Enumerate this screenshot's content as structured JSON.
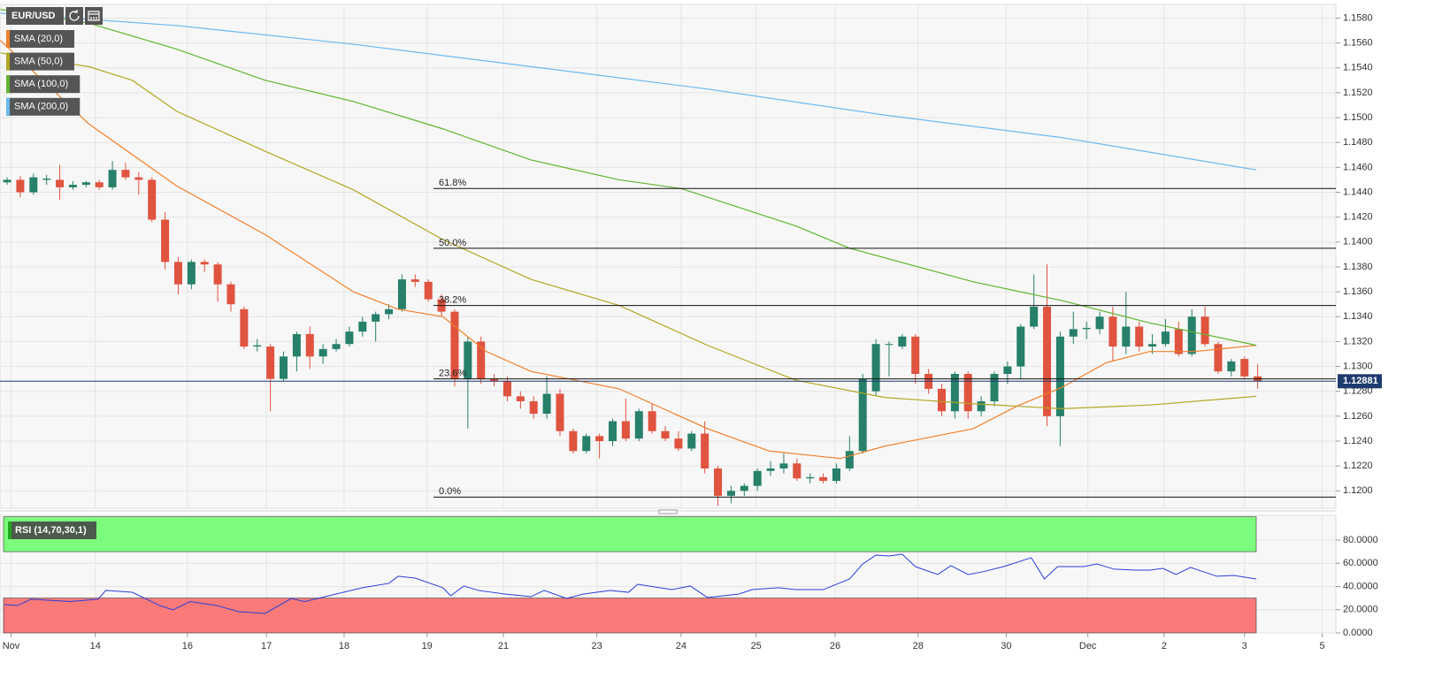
{
  "chart_data": {
    "type": "candlestick",
    "symbol": "EUR/USD",
    "up_color": "#26806a",
    "down_color": "#e0533f",
    "xlim": [
      -0.54,
      100.94
    ],
    "xticks": [
      {
        "value": 0.3,
        "label": "Nov"
      },
      {
        "value": 6.7,
        "label": "14"
      },
      {
        "value": 13.7,
        "label": "16"
      },
      {
        "value": 19.7,
        "label": "17"
      },
      {
        "value": 25.6,
        "label": "18"
      },
      {
        "value": 31.9,
        "label": "19"
      },
      {
        "value": 37.7,
        "label": "21"
      },
      {
        "value": 44.8,
        "label": "23"
      },
      {
        "value": 51.2,
        "label": "24"
      },
      {
        "value": 56.9,
        "label": "25"
      },
      {
        "value": 62.9,
        "label": "26"
      },
      {
        "value": 69.2,
        "label": "28"
      },
      {
        "value": 75.9,
        "label": "30"
      },
      {
        "value": 82.1,
        "label": "Dec"
      },
      {
        "value": 87.9,
        "label": "2"
      },
      {
        "value": 94,
        "label": "3"
      },
      {
        "value": 99.9,
        "label": "5"
      }
    ],
    "ylim": [
      1.1186,
      1.1591
    ],
    "yticks": [
      {
        "value": 1.12,
        "label": "1.1200"
      },
      {
        "value": 1.122,
        "label": "1.1220"
      },
      {
        "value": 1.124,
        "label": "1.1240"
      },
      {
        "value": 1.126,
        "label": "1.1260"
      },
      {
        "value": 1.128,
        "label": "1.1280"
      },
      {
        "value": 1.13,
        "label": "1.1300"
      },
      {
        "value": 1.132,
        "label": "1.1320"
      },
      {
        "value": 1.134,
        "label": "1.1340"
      },
      {
        "value": 1.136,
        "label": "1.1360"
      },
      {
        "value": 1.138,
        "label": "1.1380"
      },
      {
        "value": 1.14,
        "label": "1.1400"
      },
      {
        "value": 1.142,
        "label": "1.1420"
      },
      {
        "value": 1.144,
        "label": "1.1440"
      },
      {
        "value": 1.146,
        "label": "1.1460"
      },
      {
        "value": 1.148,
        "label": "1.1480"
      },
      {
        "value": 1.15,
        "label": "1.1500"
      },
      {
        "value": 1.152,
        "label": "1.1520"
      },
      {
        "value": 1.154,
        "label": "1.1540"
      },
      {
        "value": 1.156,
        "label": "1.1560"
      },
      {
        "value": 1.158,
        "label": "1.1580"
      }
    ],
    "grid": true,
    "last_price": 1.12881,
    "ohlc": [
      [
        1.1448,
        1.1452,
        1.1446,
        1.145
      ],
      [
        1.145,
        1.1453,
        1.1436,
        1.144
      ],
      [
        1.144,
        1.1455,
        1.1438,
        1.1452
      ],
      [
        1.145,
        1.1454,
        1.1446,
        1.1451
      ],
      [
        1.145,
        1.1462,
        1.1434,
        1.1444
      ],
      [
        1.1444,
        1.1449,
        1.1442,
        1.1446
      ],
      [
        1.1446,
        1.1449,
        1.1444,
        1.1448
      ],
      [
        1.1448,
        1.145,
        1.1442,
        1.1444
      ],
      [
        1.1444,
        1.1465,
        1.1442,
        1.1458
      ],
      [
        1.1458,
        1.1464,
        1.145,
        1.1452
      ],
      [
        1.1452,
        1.1456,
        1.1438,
        1.145
      ],
      [
        1.145,
        1.1452,
        1.1416,
        1.1418
      ],
      [
        1.1418,
        1.1424,
        1.1378,
        1.1384
      ],
      [
        1.1384,
        1.1388,
        1.1358,
        1.1366
      ],
      [
        1.1366,
        1.1386,
        1.1362,
        1.1384
      ],
      [
        1.1384,
        1.1386,
        1.1376,
        1.1382
      ],
      [
        1.1382,
        1.1384,
        1.1352,
        1.1366
      ],
      [
        1.1366,
        1.1368,
        1.1344,
        1.135
      ],
      [
        1.1346,
        1.1348,
        1.1314,
        1.1316
      ],
      [
        1.1316,
        1.1322,
        1.1312,
        1.1317
      ],
      [
        1.1316,
        1.1318,
        1.1264,
        1.129
      ],
      [
        1.129,
        1.1312,
        1.1288,
        1.1308
      ],
      [
        1.1308,
        1.1328,
        1.1296,
        1.1326
      ],
      [
        1.1326,
        1.1332,
        1.1298,
        1.1308
      ],
      [
        1.1308,
        1.1318,
        1.1302,
        1.1314
      ],
      [
        1.1314,
        1.1322,
        1.1312,
        1.1318
      ],
      [
        1.1318,
        1.1332,
        1.1316,
        1.1328
      ],
      [
        1.1328,
        1.134,
        1.1324,
        1.1336
      ],
      [
        1.1336,
        1.1344,
        1.132,
        1.1342
      ],
      [
        1.1342,
        1.135,
        1.1338,
        1.1346
      ],
      [
        1.1346,
        1.1374,
        1.1344,
        1.137
      ],
      [
        1.137,
        1.1374,
        1.1364,
        1.1368
      ],
      [
        1.1368,
        1.137,
        1.1352,
        1.1354
      ],
      [
        1.1354,
        1.1358,
        1.134,
        1.1344
      ],
      [
        1.1344,
        1.1346,
        1.1284,
        1.129
      ],
      [
        1.129,
        1.1324,
        1.125,
        1.132
      ],
      [
        1.132,
        1.1324,
        1.1286,
        1.129
      ],
      [
        1.129,
        1.1294,
        1.1284,
        1.1288
      ],
      [
        1.1288,
        1.1292,
        1.1272,
        1.1276
      ],
      [
        1.1276,
        1.128,
        1.1266,
        1.1272
      ],
      [
        1.1272,
        1.1276,
        1.1258,
        1.1262
      ],
      [
        1.1262,
        1.1292,
        1.1258,
        1.1278
      ],
      [
        1.1278,
        1.1282,
        1.1244,
        1.1248
      ],
      [
        1.1248,
        1.125,
        1.123,
        1.1232
      ],
      [
        1.1232,
        1.1246,
        1.123,
        1.1244
      ],
      [
        1.1244,
        1.1246,
        1.1226,
        1.124
      ],
      [
        1.124,
        1.1258,
        1.1236,
        1.1256
      ],
      [
        1.1256,
        1.1274,
        1.124,
        1.1242
      ],
      [
        1.1242,
        1.1266,
        1.124,
        1.1264
      ],
      [
        1.1264,
        1.127,
        1.1246,
        1.1248
      ],
      [
        1.1248,
        1.1252,
        1.124,
        1.1242
      ],
      [
        1.1242,
        1.1248,
        1.1232,
        1.1234
      ],
      [
        1.1234,
        1.1248,
        1.1232,
        1.1246
      ],
      [
        1.1246,
        1.1256,
        1.1214,
        1.1218
      ],
      [
        1.1218,
        1.122,
        1.1188,
        1.1196
      ],
      [
        1.1196,
        1.1204,
        1.119,
        1.12
      ],
      [
        1.12,
        1.1206,
        1.1196,
        1.1204
      ],
      [
        1.1204,
        1.1218,
        1.12,
        1.1216
      ],
      [
        1.1216,
        1.1224,
        1.1212,
        1.1218
      ],
      [
        1.1218,
        1.123,
        1.1214,
        1.1222
      ],
      [
        1.1222,
        1.1226,
        1.1208,
        1.121
      ],
      [
        1.121,
        1.1214,
        1.1206,
        1.1211
      ],
      [
        1.1211,
        1.1214,
        1.1206,
        1.1208
      ],
      [
        1.1208,
        1.1222,
        1.1206,
        1.1218
      ],
      [
        1.1218,
        1.1244,
        1.1216,
        1.1232
      ],
      [
        1.1232,
        1.1294,
        1.123,
        1.129
      ],
      [
        1.128,
        1.1322,
        1.1276,
        1.1318
      ],
      [
        1.1318,
        1.132,
        1.1292,
        1.1318
      ],
      [
        1.1316,
        1.1326,
        1.1314,
        1.1324
      ],
      [
        1.1324,
        1.1326,
        1.1286,
        1.1294
      ],
      [
        1.1294,
        1.1298,
        1.1278,
        1.1282
      ],
      [
        1.1282,
        1.1286,
        1.126,
        1.1264
      ],
      [
        1.1264,
        1.1296,
        1.1258,
        1.1294
      ],
      [
        1.1294,
        1.1296,
        1.1258,
        1.1264
      ],
      [
        1.1264,
        1.1276,
        1.126,
        1.1272
      ],
      [
        1.1272,
        1.1296,
        1.1268,
        1.1294
      ],
      [
        1.1294,
        1.1304,
        1.1286,
        1.13
      ],
      [
        1.13,
        1.1334,
        1.129,
        1.1332
      ],
      [
        1.1332,
        1.1374,
        1.133,
        1.1348
      ],
      [
        1.1348,
        1.1382,
        1.1252,
        1.126
      ],
      [
        1.126,
        1.1328,
        1.1236,
        1.1324
      ],
      [
        1.1324,
        1.1344,
        1.1318,
        1.133
      ],
      [
        1.133,
        1.1336,
        1.1322,
        1.1331
      ],
      [
        1.133,
        1.1344,
        1.1326,
        1.134
      ],
      [
        1.134,
        1.1348,
        1.1304,
        1.1316
      ],
      [
        1.1316,
        1.136,
        1.131,
        1.1332
      ],
      [
        1.1332,
        1.1336,
        1.1312,
        1.1316
      ],
      [
        1.1316,
        1.1326,
        1.131,
        1.1318
      ],
      [
        1.1318,
        1.1338,
        1.1316,
        1.1328
      ],
      [
        1.133,
        1.1336,
        1.1308,
        1.131
      ],
      [
        1.131,
        1.1346,
        1.1308,
        1.134
      ],
      [
        1.134,
        1.1348,
        1.1316,
        1.1318
      ],
      [
        1.1318,
        1.132,
        1.1294,
        1.1296
      ],
      [
        1.1296,
        1.1306,
        1.1292,
        1.1304
      ],
      [
        1.1306,
        1.1308,
        1.129,
        1.1292
      ],
      [
        1.1292,
        1.1302,
        1.1282,
        1.1288
      ]
    ],
    "series": [
      {
        "name": "SMA (20,0)",
        "color": "#f07f2a",
        "x": [
          -0.5,
          6.2,
          12.9,
          19.6,
          26.3,
          29.7,
          33.1,
          36.4,
          39.8,
          46.5,
          53.2,
          57.9,
          63.3,
          66.7,
          73.4,
          76.7,
          80.1,
          83.5,
          86.8,
          90.2,
          94.9
        ],
        "values": [
          1.1562,
          1.1495,
          1.1445,
          1.1406,
          1.136,
          1.1346,
          1.134,
          1.1312,
          1.1296,
          1.1282,
          1.125,
          1.1232,
          1.1226,
          1.1236,
          1.125,
          1.1268,
          1.1283,
          1.1303,
          1.1312,
          1.1312,
          1.1317
        ]
      },
      {
        "name": "SMA (50,0)",
        "color": "#b3a623",
        "x": [
          -0.5,
          6.2,
          9.5,
          12.9,
          19.6,
          26.3,
          33.1,
          39.8,
          46.5,
          53.2,
          59.9,
          66.7,
          73.4,
          80.1,
          86.8,
          94.9
        ],
        "values": [
          1.1552,
          1.1541,
          1.153,
          1.1505,
          1.1473,
          1.1442,
          1.1402,
          1.137,
          1.1349,
          1.1317,
          1.1289,
          1.1275,
          1.127,
          1.1266,
          1.1269,
          1.1276
        ]
      },
      {
        "name": "SMA (100,0)",
        "color": "#5fb52f",
        "x": [
          -0.5,
          6.2,
          12.9,
          19.6,
          26.3,
          33.1,
          39.8,
          46.5,
          51.2,
          59.9,
          64,
          73.4,
          80.1,
          86.8,
          94.9
        ],
        "values": [
          1.1587,
          1.1576,
          1.1555,
          1.153,
          1.1513,
          1.1491,
          1.1466,
          1.145,
          1.1443,
          1.1413,
          1.1395,
          1.1368,
          1.1353,
          1.1335,
          1.1317
        ]
      },
      {
        "name": "SMA (200,0)",
        "color": "#6ab9ef",
        "x": [
          -0.5,
          12.9,
          26.3,
          39.8,
          53.2,
          66.7,
          80.1,
          94.9
        ],
        "values": [
          1.1584,
          1.1574,
          1.1559,
          1.1541,
          1.1523,
          1.1502,
          1.1484,
          1.1458
        ]
      }
    ],
    "fib_levels": [
      {
        "label": "61.8%",
        "price": 1.1443
      },
      {
        "label": "50.0%",
        "price": 1.1395
      },
      {
        "label": "38.2%",
        "price": 1.1349
      },
      {
        "label": "23.6%",
        "price": 1.129
      },
      {
        "label": "0.0%",
        "price": 1.1195
      }
    ],
    "rsi": {
      "type": "line",
      "name": "RSI (14,70,30,1)",
      "color": "#2a3fd8",
      "ylim": [
        0,
        101.3
      ],
      "yticks": [
        {
          "value": 0,
          "label": "0.0000"
        },
        {
          "value": 20,
          "label": "20.0000"
        },
        {
          "value": 40,
          "label": "40.0000"
        },
        {
          "value": 60,
          "label": "60.0000"
        },
        {
          "value": 80,
          "label": "80.0000"
        }
      ],
      "bands": [
        {
          "range": [
            70,
            100
          ],
          "color": "#7cfc7c"
        },
        {
          "range": [
            0,
            30
          ],
          "color": "#fa7a7a"
        }
      ],
      "x": [
        -0.2,
        0.8,
        1.8,
        4.8,
        6.9,
        7.5,
        9.5,
        11.6,
        12.6,
        13.9,
        15.9,
        17.6,
        19.6,
        21.6,
        22.6,
        25,
        27,
        29,
        29.7,
        31,
        33.1,
        33.7,
        34.7,
        35.8,
        37.8,
        39.8,
        40.8,
        42.5,
        43.8,
        45.8,
        47.2,
        47.9,
        50.5,
        51.9,
        53.2,
        55.6,
        56.6,
        58.6,
        59.9,
        62,
        64,
        65,
        66,
        67,
        68,
        69,
        70.7,
        71.7,
        73,
        74.1,
        75.7,
        77.8,
        78.8,
        79.8,
        81.8,
        82.8,
        84.1,
        85.8,
        86.8,
        87.8,
        88.8,
        89.9,
        91.9,
        93.2,
        94.9
      ],
      "values": [
        24.4,
        23.6,
        29,
        27,
        29,
        36.6,
        35,
        23.6,
        19.8,
        27,
        23.6,
        18.3,
        16.8,
        29.7,
        27,
        33.5,
        38.9,
        42.7,
        48.8,
        47.2,
        38.9,
        32,
        40.4,
        36.6,
        33.5,
        31.2,
        36.6,
        29.7,
        33.5,
        36.6,
        35,
        41.9,
        37.3,
        40.4,
        30.5,
        33.5,
        37.3,
        38.9,
        37.3,
        37.3,
        46.5,
        59.4,
        67,
        66.3,
        67.8,
        57.1,
        50.3,
        57.9,
        50.3,
        52.6,
        57.1,
        64.8,
        46.5,
        57.1,
        57.1,
        59.4,
        54.9,
        54.1,
        54.1,
        55.6,
        50.3,
        56.4,
        48.8,
        49.5,
        46.5
      ]
    }
  }
}
